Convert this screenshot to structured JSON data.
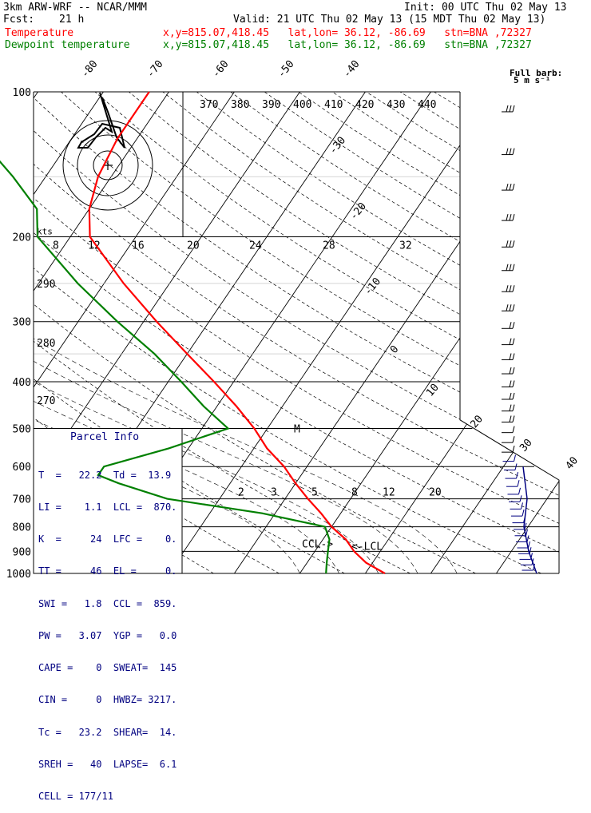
{
  "header": {
    "model": "3km ARW-WRF -- NCAR/MMM",
    "init": "Init: 00 UTC Thu 02 May 13",
    "fcst_label": "Fcst:",
    "fcst_value": "21 h",
    "valid": "Valid: 21 UTC Thu 02 May 13 (15 MDT Thu 02 May 13)",
    "temp_label": "Temperature",
    "temp_loc": "x,y=815.07,418.45   lat,lon= 36.12, -86.69   stn=BNA ,72327",
    "dew_label": "Dewpoint temperature",
    "dew_loc": "x,y=815.07,418.45   lat,lon= 36.12, -86.69   stn=BNA ,72327"
  },
  "colors": {
    "temperature": "#ff0000",
    "dewpoint": "#008000",
    "parcel": "#000080",
    "theta_e": "#000000"
  },
  "chart_data": {
    "type": "line",
    "title": "",
    "yscale": "log-pressure",
    "ylim": [
      1000,
      100
    ],
    "pressure_ticks": [
      100,
      200,
      300,
      400,
      500,
      600,
      700,
      800,
      900,
      1000
    ],
    "temp_ticks_top": [
      -80,
      -70,
      -60,
      -50,
      -40
    ],
    "temp_ticks_right": [
      -30,
      -20,
      -10,
      0,
      10,
      20,
      30,
      40
    ],
    "theta_e_labels": [
      370,
      380,
      390,
      400,
      410,
      420,
      430,
      440
    ],
    "mixing_ratio_labels_top": [
      8,
      12,
      16,
      20,
      24,
      28,
      32
    ],
    "mixing_ratio_labels_bottom": [
      2,
      3,
      5,
      8,
      12,
      20
    ],
    "theta_labels": [
      290,
      280,
      270
    ],
    "series": [
      {
        "name": "Temperature",
        "pressure": [
          1000,
          950,
          900,
          850,
          800,
          750,
          700,
          650,
          600,
          550,
          500,
          450,
          400,
          350,
          300,
          250,
          200,
          175,
          150,
          125,
          100
        ],
        "temperature": [
          23,
          19,
          16,
          13.5,
          10,
          7,
          3.5,
          0,
          -3.5,
          -8,
          -12,
          -17,
          -23,
          -30,
          -38,
          -47,
          -57,
          -60,
          -62,
          -63,
          -63
        ]
      },
      {
        "name": "Dewpoint temperature",
        "pressure": [
          1000,
          950,
          900,
          850,
          800,
          750,
          700,
          650,
          625,
          600,
          550,
          500,
          450,
          400,
          350,
          300,
          250,
          200,
          175,
          150,
          125,
          100
        ],
        "temperature": [
          14,
          13,
          12,
          11,
          9,
          -2,
          -18,
          -27,
          -31,
          -31,
          -23,
          -16,
          -22,
          -28,
          -35,
          -44,
          -54,
          -65,
          -68,
          -75,
          -84,
          -88
        ]
      }
    ],
    "labels": {
      "ccl": "CCL->",
      "lcl": "<-LCL",
      "lfc_marker": "M",
      "kts": "kts",
      "barb": "Full barb:",
      "barb_unit": "5 m s⁻¹"
    }
  },
  "parcel_info": {
    "title": "Parcel Info",
    "rows": [
      "T  =   22.2  Td =  13.9",
      "LI =    1.1  LCL =  870.",
      "K  =     24  LFC =    0.",
      "TT =     46  EL =     0.",
      "SWI =   1.8  CCL =  859.",
      "PW =   3.07  YGP =   0.0",
      "CAPE =    0  SWEAT=  145",
      "CIN =     0  HWBZ= 3217.",
      "Tc =   23.2  SHEAR=  14.",
      "SREH =   40  LAPSE=  6.1",
      "CELL = 177/11"
    ]
  }
}
